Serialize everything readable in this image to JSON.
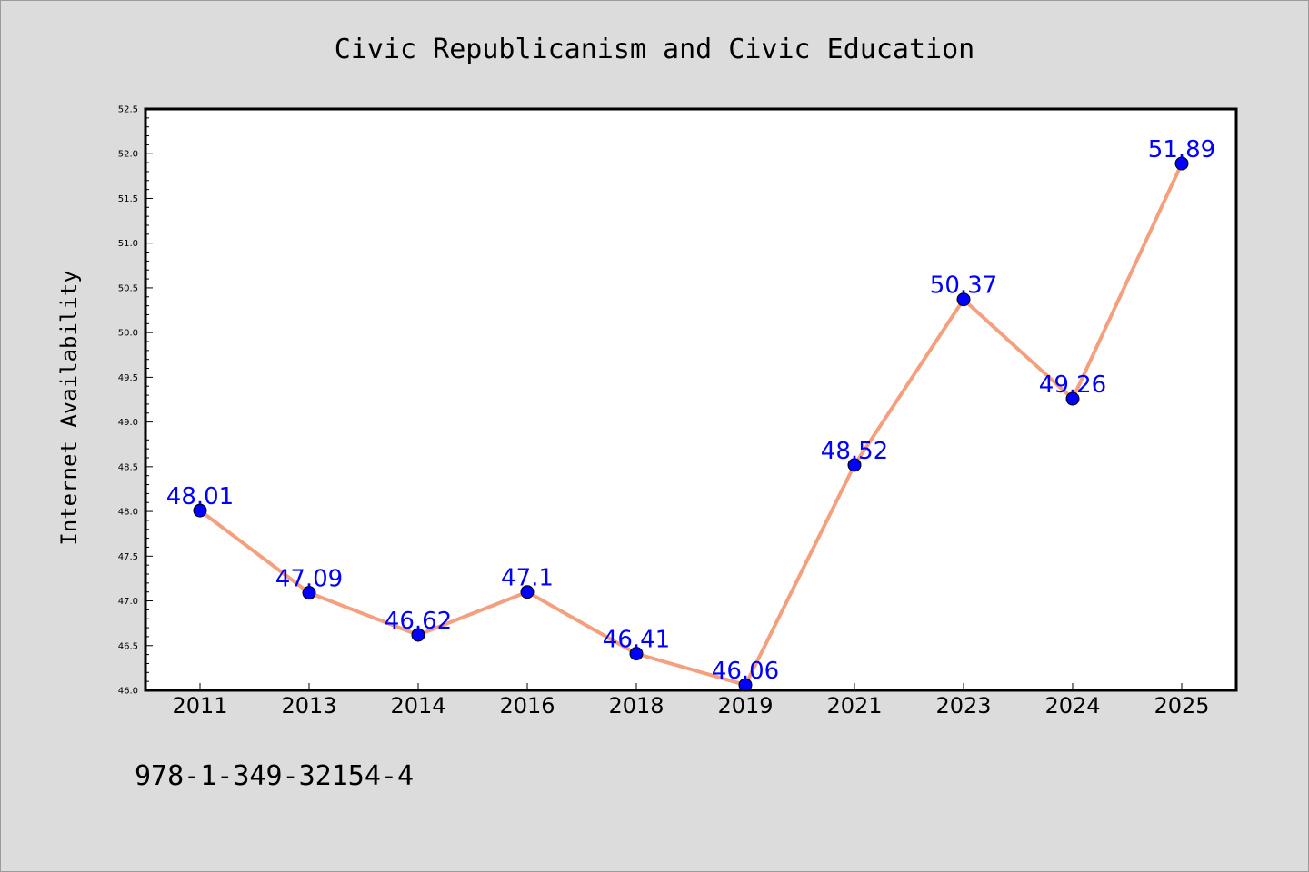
{
  "chart_data": {
    "type": "line",
    "title": "Civic Republicanism and Civic Education",
    "xlabel": "",
    "ylabel": "Internet Availability",
    "categories": [
      "2011",
      "2013",
      "2014",
      "2016",
      "2018",
      "2019",
      "2021",
      "2023",
      "2024",
      "2025"
    ],
    "series": [
      {
        "values": [
          48.01,
          47.09,
          46.62,
          47.1,
          46.41,
          46.06,
          48.52,
          50.37,
          49.26,
          51.89
        ],
        "data_labels": [
          "48.01",
          "47.09",
          "46.62",
          "47.1",
          "46.41",
          "46.06",
          "48.52",
          "50.37",
          "49.26",
          "51.89"
        ],
        "line_color": "#f4a07f",
        "marker_color": "#0000ff"
      }
    ],
    "ylim": [
      46.0,
      52.5
    ],
    "yticks": [
      "46.0",
      "46.5",
      "47.0",
      "47.5",
      "48.0",
      "48.5",
      "49.0",
      "49.5",
      "50.0",
      "50.5",
      "51.0",
      "51.5",
      "52.0",
      "52.5"
    ],
    "grid": false,
    "legend": "none",
    "background_color": "#dcdcdc",
    "plot_background": "#ffffff",
    "label_color": "#0000ff"
  },
  "footnote": "978-1-349-32154-4"
}
